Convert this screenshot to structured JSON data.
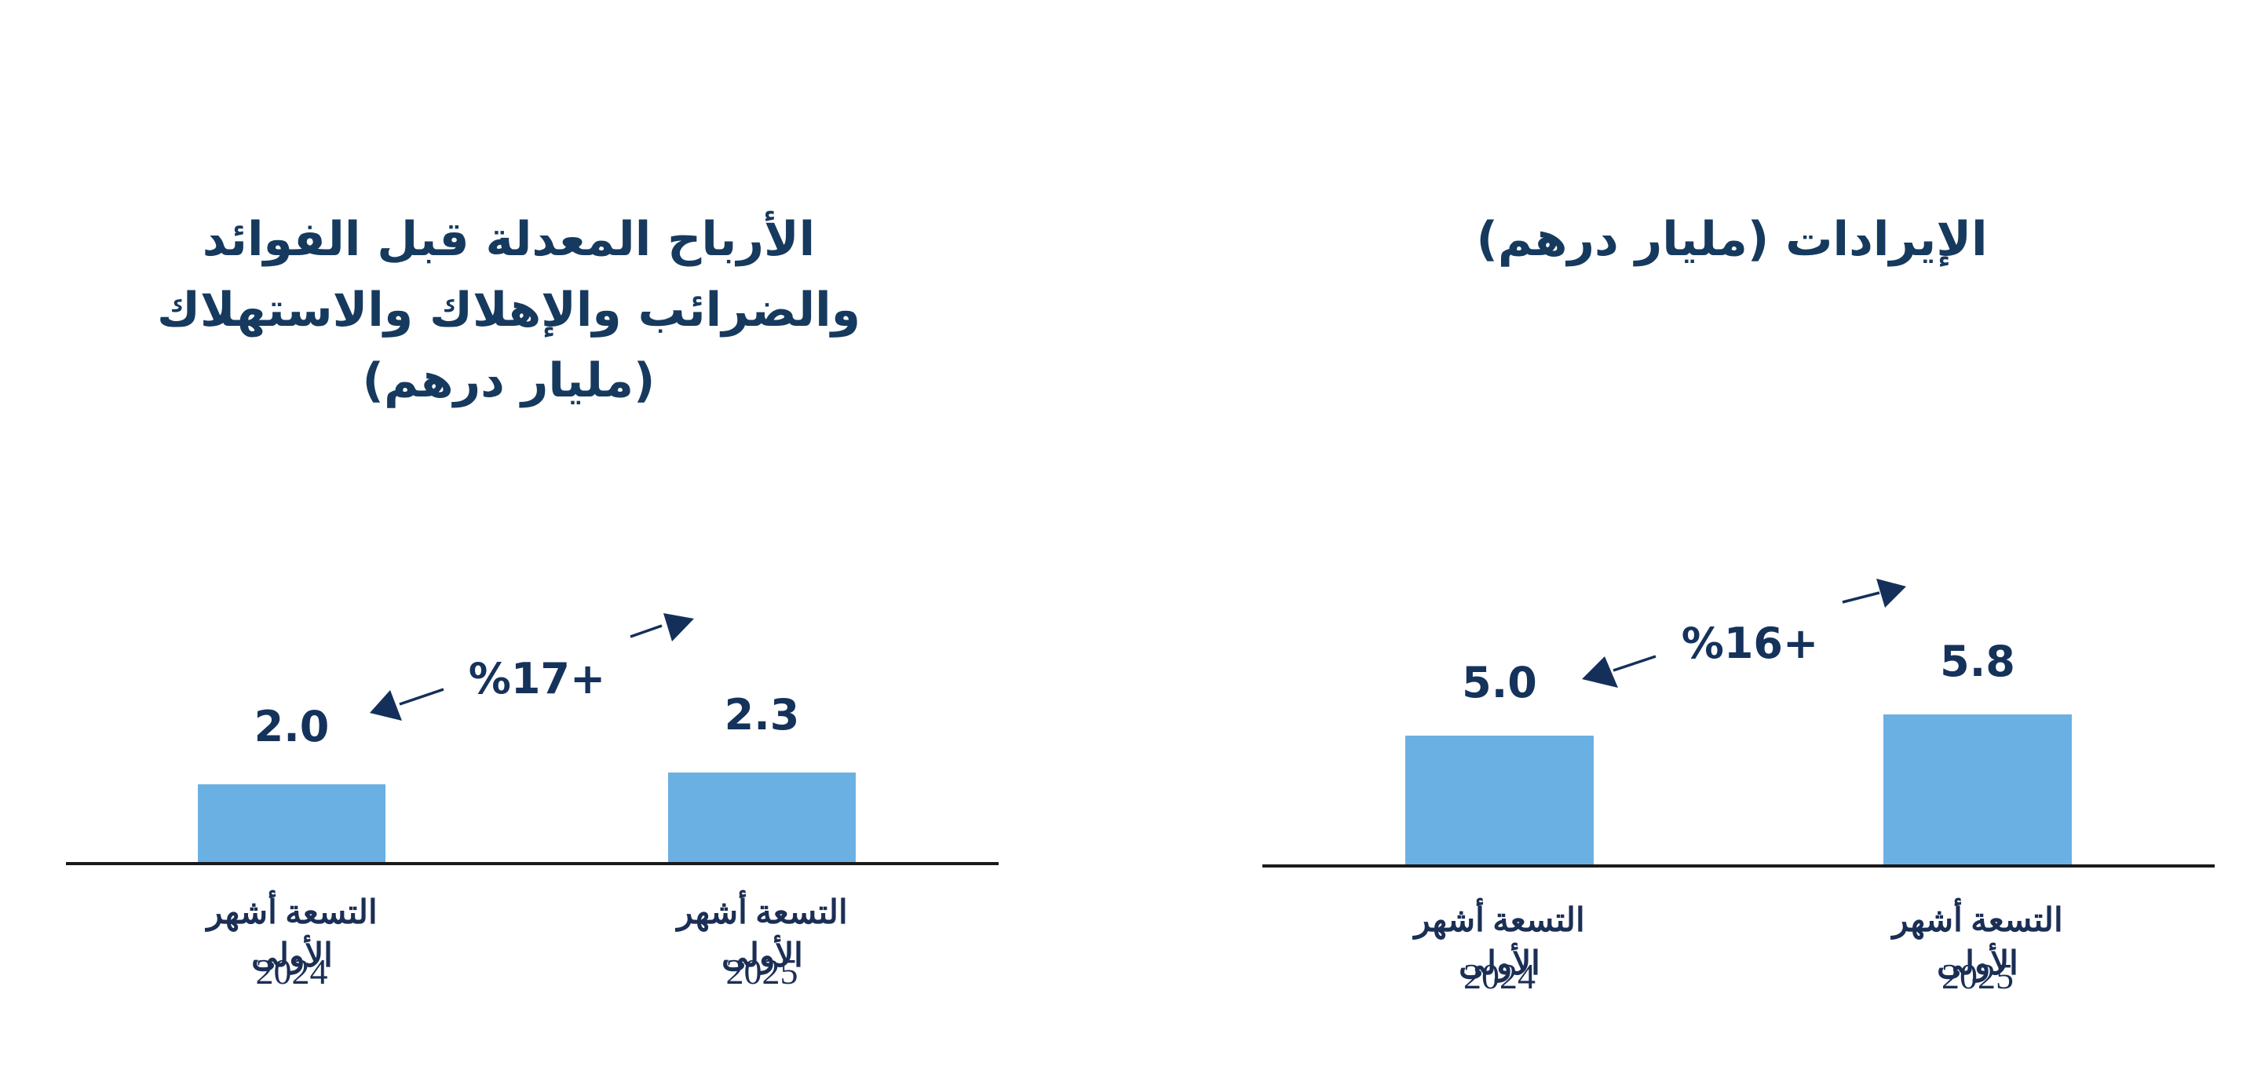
{
  "colors": {
    "title_navy": "#16395E",
    "label_navy": "#15325B",
    "serif_navy": "#1B2F55",
    "arrow_navy": "#14305A",
    "bar_blue": "#6BB0E3",
    "axis_dark": "#1A1A1A",
    "background": "#FFFFFF"
  },
  "chart_data": [
    {
      "type": "bar",
      "position": "left",
      "title": "الأرباح المعدلة قبل الفوائد والضرائب والإهلاك والاستهلاك (مليار درهم)",
      "categories": [
        "التسعة أشهر الأولى 2024",
        "التسعة أشهر الأولى 2025"
      ],
      "period_label": "التسعة أشهر الأولى",
      "years": [
        "2024",
        "2025"
      ],
      "values": [
        2.0,
        2.3
      ],
      "value_labels": [
        "2.0",
        "2.3"
      ],
      "growth_annotation": "%17+",
      "bar_color": "#6BB0E3",
      "ylim": [
        0,
        2.8
      ],
      "grid": false,
      "legend": false,
      "xlabel": "",
      "ylabel": ""
    },
    {
      "type": "bar",
      "position": "right",
      "title": "الإيرادات (مليار درهم)",
      "categories": [
        "التسعة أشهر الأولى 2024",
        "التسعة أشهر الأولى 2025"
      ],
      "period_label": "التسعة أشهر الأولى",
      "years": [
        "2024",
        "2025"
      ],
      "values": [
        5.0,
        5.8
      ],
      "value_labels": [
        "5.0",
        "5.8"
      ],
      "growth_annotation": "%16+",
      "bar_color": "#6BB0E3",
      "ylim": [
        0,
        6.9
      ],
      "grid": false,
      "legend": false,
      "xlabel": "",
      "ylabel": ""
    }
  ]
}
